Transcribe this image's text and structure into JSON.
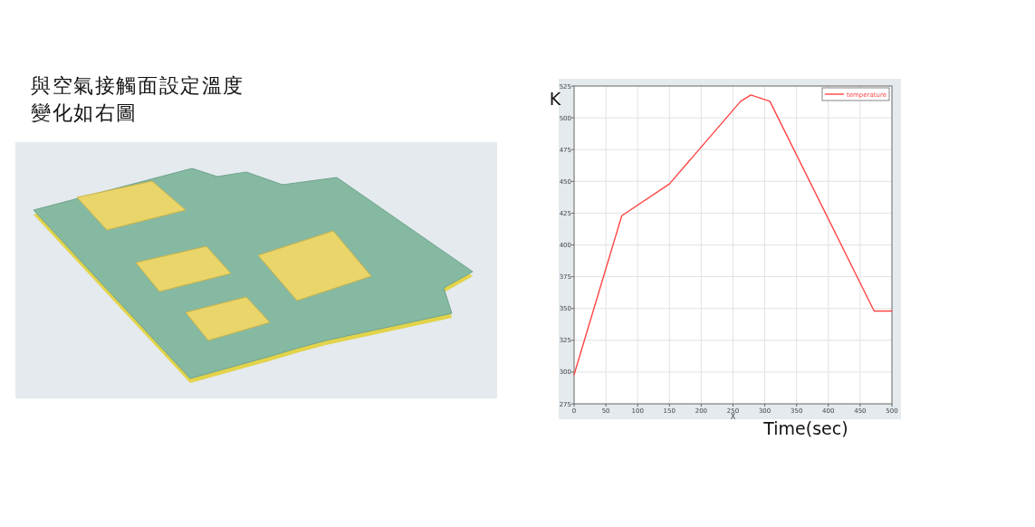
{
  "chart_data": {
    "type": "line",
    "title": "與空氣接觸面設定溫度變化如右圖",
    "xlabel": "X",
    "ylabel": "K",
    "annotations": [
      "Time(sec)"
    ],
    "x": [
      0,
      75,
      150,
      262,
      278,
      308,
      472,
      500
    ],
    "series": [
      {
        "name": "temperature",
        "color": "#ff4545",
        "values": [
          298,
          423,
          448,
          513,
          518,
          513,
          348,
          348
        ]
      }
    ],
    "xlim": [
      0,
      500
    ],
    "ylim": [
      275,
      525
    ],
    "xticks": [
      0,
      50,
      100,
      150,
      200,
      250,
      300,
      350,
      400,
      450,
      500
    ],
    "yticks": [
      275,
      300,
      325,
      350,
      375,
      400,
      425,
      450,
      475,
      500,
      525
    ],
    "grid": true,
    "legend": "top right",
    "line_style": "solid"
  }
}
